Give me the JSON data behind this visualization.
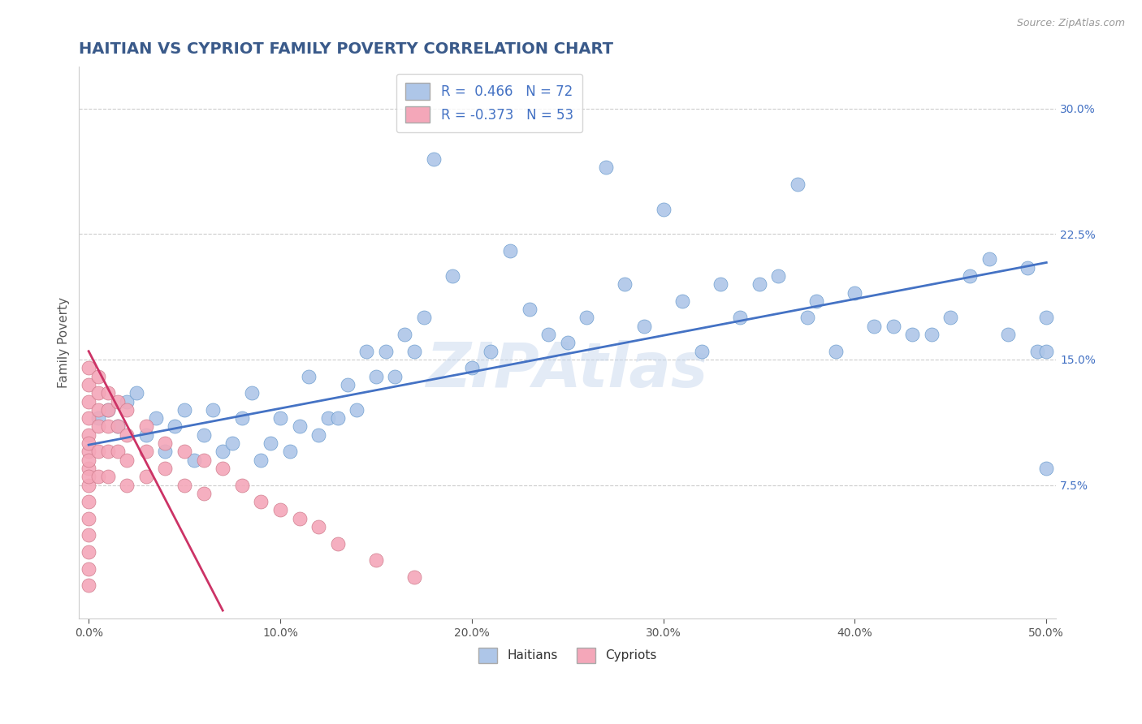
{
  "title": "HAITIAN VS CYPRIOT FAMILY POVERTY CORRELATION CHART",
  "source_text": "Source: ZipAtlas.com",
  "ylabel": "Family Poverty",
  "xlim": [
    -0.005,
    0.505
  ],
  "ylim": [
    -0.005,
    0.325
  ],
  "xticks": [
    0.0,
    0.1,
    0.2,
    0.3,
    0.4,
    0.5
  ],
  "xtick_labels": [
    "0.0%",
    "10.0%",
    "20.0%",
    "30.0%",
    "40.0%",
    "50.0%"
  ],
  "yticks": [
    0.075,
    0.15,
    0.225,
    0.3
  ],
  "ytick_labels": [
    "7.5%",
    "15.0%",
    "22.5%",
    "30.0%"
  ],
  "grid_color": "#cccccc",
  "background_color": "#ffffff",
  "blue_color": "#aec6e8",
  "blue_edge_color": "#6699cc",
  "blue_line_color": "#4472c4",
  "pink_color": "#f4a7b9",
  "pink_edge_color": "#cc7788",
  "pink_line_color": "#cc3366",
  "ytick_color": "#4472c4",
  "legend_R1": "0.466",
  "legend_N1": "72",
  "legend_R2": "-0.373",
  "legend_N2": "53",
  "legend_label1": "Haitians",
  "legend_label2": "Cypriots",
  "watermark": "ZIPAtlas",
  "title_color": "#3a5a8a",
  "title_fontsize": 14,
  "blue_scatter_x": [
    0.005,
    0.01,
    0.015,
    0.02,
    0.025,
    0.03,
    0.035,
    0.04,
    0.045,
    0.05,
    0.055,
    0.06,
    0.065,
    0.07,
    0.075,
    0.08,
    0.085,
    0.09,
    0.095,
    0.1,
    0.105,
    0.11,
    0.115,
    0.12,
    0.125,
    0.13,
    0.135,
    0.14,
    0.145,
    0.15,
    0.155,
    0.16,
    0.165,
    0.17,
    0.175,
    0.18,
    0.19,
    0.2,
    0.21,
    0.22,
    0.23,
    0.24,
    0.25,
    0.26,
    0.27,
    0.28,
    0.29,
    0.3,
    0.31,
    0.32,
    0.33,
    0.34,
    0.35,
    0.36,
    0.37,
    0.375,
    0.38,
    0.39,
    0.4,
    0.41,
    0.42,
    0.43,
    0.44,
    0.45,
    0.46,
    0.47,
    0.48,
    0.49,
    0.495,
    0.5,
    0.5,
    0.5
  ],
  "blue_scatter_y": [
    0.115,
    0.12,
    0.11,
    0.125,
    0.13,
    0.105,
    0.115,
    0.095,
    0.11,
    0.12,
    0.09,
    0.105,
    0.12,
    0.095,
    0.1,
    0.115,
    0.13,
    0.09,
    0.1,
    0.115,
    0.095,
    0.11,
    0.14,
    0.105,
    0.115,
    0.115,
    0.135,
    0.12,
    0.155,
    0.14,
    0.155,
    0.14,
    0.165,
    0.155,
    0.175,
    0.27,
    0.2,
    0.145,
    0.155,
    0.215,
    0.18,
    0.165,
    0.16,
    0.175,
    0.265,
    0.195,
    0.17,
    0.24,
    0.185,
    0.155,
    0.195,
    0.175,
    0.195,
    0.2,
    0.255,
    0.175,
    0.185,
    0.155,
    0.19,
    0.17,
    0.17,
    0.165,
    0.165,
    0.175,
    0.2,
    0.21,
    0.165,
    0.205,
    0.155,
    0.155,
    0.175,
    0.085
  ],
  "pink_scatter_x": [
    0.0,
    0.0,
    0.0,
    0.0,
    0.0,
    0.0,
    0.0,
    0.0,
    0.0,
    0.0,
    0.0,
    0.0,
    0.0,
    0.0,
    0.0,
    0.0,
    0.0,
    0.005,
    0.005,
    0.005,
    0.005,
    0.005,
    0.005,
    0.01,
    0.01,
    0.01,
    0.01,
    0.01,
    0.015,
    0.015,
    0.015,
    0.02,
    0.02,
    0.02,
    0.02,
    0.03,
    0.03,
    0.03,
    0.04,
    0.04,
    0.05,
    0.05,
    0.06,
    0.06,
    0.07,
    0.08,
    0.09,
    0.1,
    0.11,
    0.12,
    0.13,
    0.15,
    0.17
  ],
  "pink_scatter_y": [
    0.145,
    0.135,
    0.125,
    0.115,
    0.105,
    0.095,
    0.085,
    0.075,
    0.065,
    0.055,
    0.045,
    0.035,
    0.025,
    0.015,
    0.1,
    0.09,
    0.08,
    0.14,
    0.13,
    0.12,
    0.11,
    0.095,
    0.08,
    0.13,
    0.12,
    0.11,
    0.095,
    0.08,
    0.125,
    0.11,
    0.095,
    0.12,
    0.105,
    0.09,
    0.075,
    0.11,
    0.095,
    0.08,
    0.1,
    0.085,
    0.095,
    0.075,
    0.09,
    0.07,
    0.085,
    0.075,
    0.065,
    0.06,
    0.055,
    0.05,
    0.04,
    0.03,
    0.02
  ],
  "blue_trend_x": [
    0.0,
    0.5
  ],
  "blue_trend_y": [
    0.099,
    0.208
  ],
  "pink_trend_x": [
    0.0,
    0.07
  ],
  "pink_trend_y": [
    0.155,
    0.0
  ],
  "axis_label_color": "#555555",
  "spine_color": "#cccccc"
}
